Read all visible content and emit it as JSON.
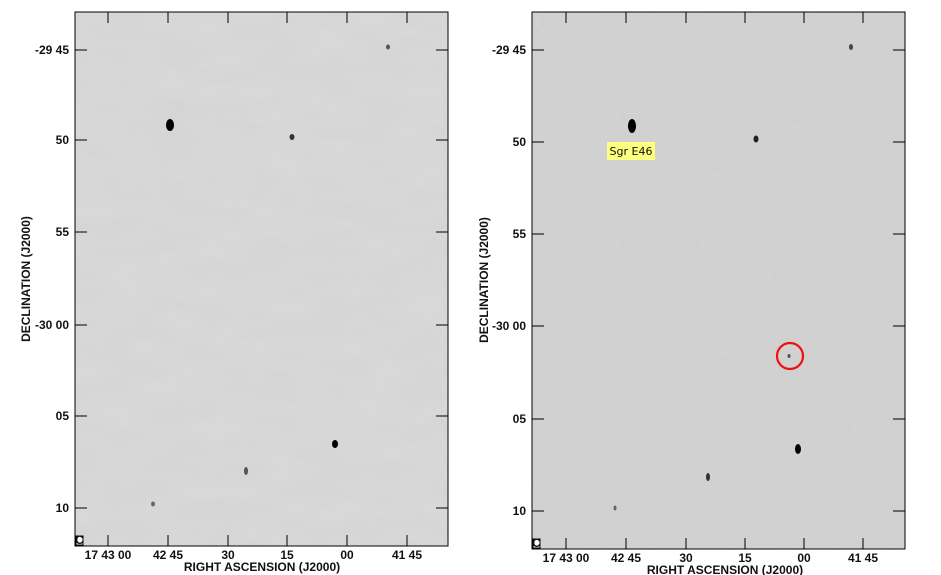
{
  "panels": [
    {
      "id": "left",
      "xlabel": "RIGHT ASCENSION (J2000)",
      "ylabel": "DECLINATION (J2000)",
      "xticks": [
        "17 43 00",
        "42 45",
        "30",
        "15",
        "00",
        "41 45"
      ],
      "yticks": [
        "-29 45",
        "50",
        "55",
        "-30 00",
        "05",
        "10"
      ],
      "corner_mark": "C",
      "background": "#d4d4d4"
    },
    {
      "id": "right",
      "xlabel": "RIGHT ASCENSION (J2000)",
      "ylabel": "DECLINATION (J2000)",
      "xticks": [
        "17 43 00",
        "42 45",
        "30",
        "15",
        "00",
        "41 45"
      ],
      "yticks": [
        "-29 45",
        "50",
        "55",
        "-30 00",
        "05",
        "10"
      ],
      "corner_mark": "C",
      "background": "#cfcfcf",
      "annotation": {
        "label": "Sgr E46",
        "color": "#ffff80"
      },
      "marker_color": "#ee1111"
    }
  ]
}
